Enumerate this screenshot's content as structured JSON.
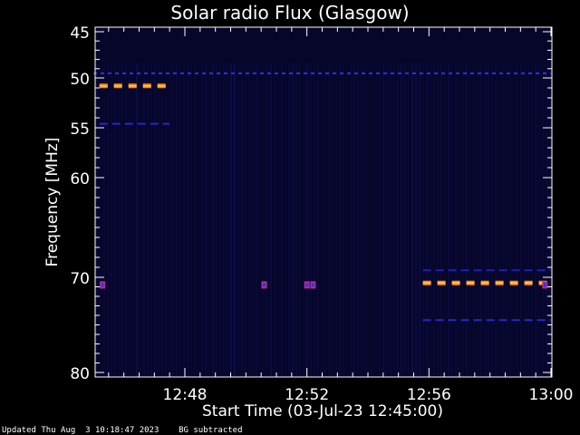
{
  "chart_data": {
    "type": "heatmap",
    "title": "Solar radio Flux (Glasgow)",
    "xlabel": "Start Time (03-Jul-23 12:45:00)",
    "ylabel": "Frequency [MHz]",
    "x_range_minutes": [
      0,
      15
    ],
    "x_ticks": [
      {
        "minute": 3,
        "label": "12:48"
      },
      {
        "minute": 7,
        "label": "12:52"
      },
      {
        "minute": 11,
        "label": "12:56"
      },
      {
        "minute": 15,
        "label": "13:00"
      }
    ],
    "y_range_mhz": [
      45,
      80
    ],
    "y_ticks": [
      {
        "mhz": 45,
        "label": "45"
      },
      {
        "mhz": 50,
        "label": "50"
      },
      {
        "mhz": 55,
        "label": "55"
      },
      {
        "mhz": 60,
        "label": "60"
      },
      {
        "mhz": 70,
        "label": "70"
      },
      {
        "mhz": 80,
        "label": "80"
      }
    ],
    "emission_features": [
      {
        "name": "band-50mhz-blue",
        "freq_mhz": 49.5,
        "start_min": 0,
        "end_min": 15,
        "color": "#3030e0"
      },
      {
        "name": "band-51mhz-orange",
        "freq_mhz": 50.8,
        "start_min": 0.2,
        "end_min": 2.5,
        "color": "#ff8a00"
      },
      {
        "name": "band-54mhz-blue",
        "freq_mhz": 54.6,
        "start_min": 0.2,
        "end_min": 2.5,
        "color": "#2828c8"
      },
      {
        "name": "band-70mhz-orange",
        "freq_mhz": 70.6,
        "start_min": 10.8,
        "end_min": 15,
        "color": "#ff8a00"
      },
      {
        "name": "band-69mhz-blue",
        "freq_mhz": 69.3,
        "start_min": 10.8,
        "end_min": 15,
        "color": "#2020b0"
      },
      {
        "name": "band-74mhz-blue",
        "freq_mhz": 74.5,
        "start_min": 10.8,
        "end_min": 15,
        "color": "#2828c8"
      }
    ],
    "spot_features": [
      {
        "name": "spot-1",
        "freq_mhz": 70.8,
        "minute": 0.3,
        "color": "#b03090"
      },
      {
        "name": "spot-2",
        "freq_mhz": 70.8,
        "minute": 5.6,
        "color": "#b03090"
      },
      {
        "name": "spot-3",
        "freq_mhz": 70.8,
        "minute": 7.0,
        "color": "#b03090"
      },
      {
        "name": "spot-4",
        "freq_mhz": 70.8,
        "minute": 7.2,
        "color": "#b03090"
      },
      {
        "name": "spot-5",
        "freq_mhz": 70.8,
        "minute": 14.8,
        "color": "#b03090"
      }
    ],
    "background_color": "#06062a",
    "axis_color": "#ffffff"
  },
  "footer": {
    "updated": "Updated Thu Aug  3 10:18:47 2023",
    "note": "BG subtracted"
  }
}
